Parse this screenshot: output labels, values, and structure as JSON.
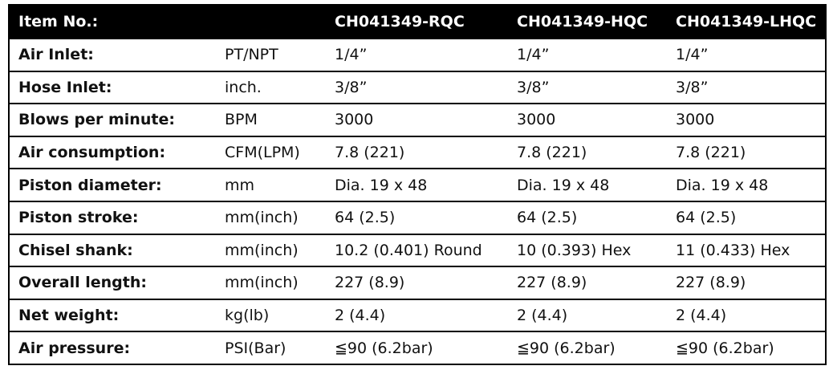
{
  "table": {
    "header": {
      "label": "Item No.:",
      "models": [
        "CH041349-RQC",
        "CH041349-HQC",
        "CH041349-LHQC"
      ]
    },
    "rows": [
      [
        "Air Inlet:",
        "PT/NPT",
        "1/4”",
        "1/4”",
        "1/4”"
      ],
      [
        "Hose Inlet:",
        "inch.",
        "3/8”",
        "3/8”",
        "3/8”"
      ],
      [
        "Blows per minute:",
        "BPM",
        "3000",
        "3000",
        "3000"
      ],
      [
        "Air consumption:",
        "CFM(LPM)",
        "7.8 (221)",
        "7.8 (221)",
        "7.8 (221)"
      ],
      [
        "Piston diameter:",
        "mm",
        "Dia. 19 x 48",
        "Dia. 19 x 48",
        "Dia. 19 x 48"
      ],
      [
        "Piston stroke:",
        "mm(inch)",
        "64 (2.5)",
        "64 (2.5)",
        "64 (2.5)"
      ],
      [
        "Chisel shank:",
        "mm(inch)",
        "10.2 (0.401) Round",
        "10 (0.393) Hex",
        "11 (0.433) Hex"
      ],
      [
        "Overall length:",
        "mm(inch)",
        "227 (8.9)",
        "227 (8.9)",
        "227 (8.9)"
      ],
      [
        "Net weight:",
        "kg(lb)",
        "2 (4.4)",
        "2 (4.4)",
        "2 (4.4)"
      ],
      [
        "Air pressure:",
        "PSI(Bar)",
        "≦90 (6.2bar)",
        "≦90 (6.2bar)",
        "≦90 (6.2bar)"
      ]
    ]
  }
}
